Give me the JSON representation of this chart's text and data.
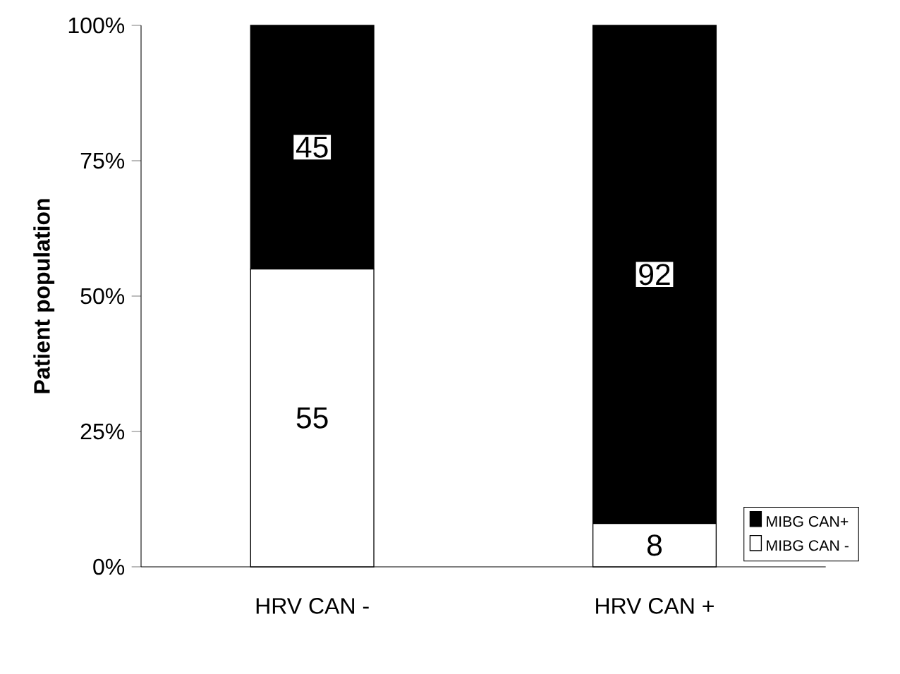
{
  "chart_data": {
    "type": "bar",
    "stacked": true,
    "ylabel": "Patient population",
    "categories": [
      "HRV CAN -",
      "HRV CAN +"
    ],
    "series": [
      {
        "name": "MIBG CAN -",
        "color": "#ffffff",
        "values": [
          55,
          8
        ]
      },
      {
        "name": "MIBG CAN+",
        "color": "#000000",
        "values": [
          45,
          92
        ]
      }
    ],
    "ylim": [
      0,
      100
    ],
    "yticks": [
      {
        "value": 0,
        "label": "0%"
      },
      {
        "value": 25,
        "label": "25%"
      },
      {
        "value": 50,
        "label": "50%"
      },
      {
        "value": 75,
        "label": "75%"
      },
      {
        "value": 100,
        "label": "100%"
      }
    ],
    "data_labels": true,
    "legend": "bottom right",
    "grid": false
  }
}
